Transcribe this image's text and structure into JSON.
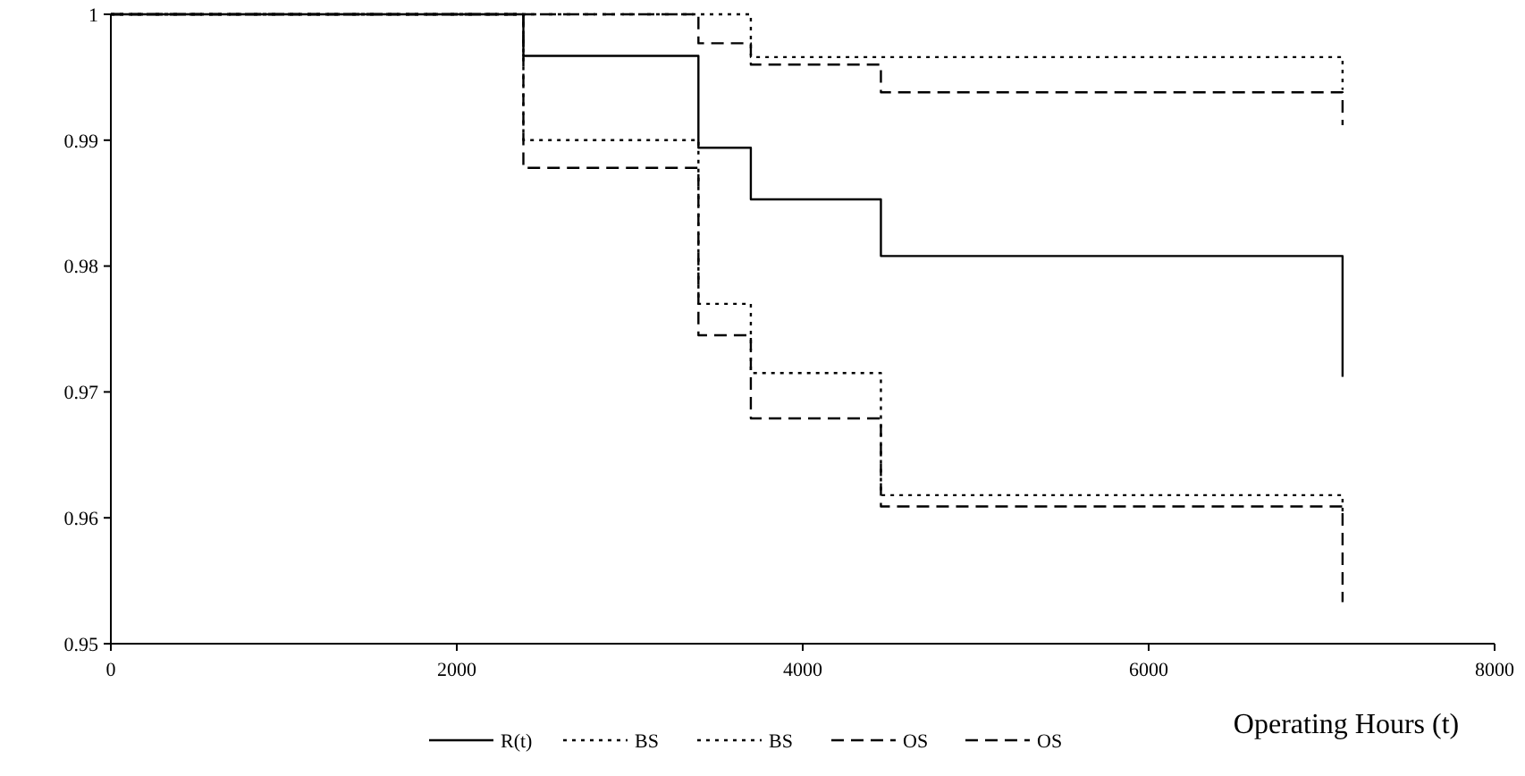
{
  "chart_data": {
    "type": "step",
    "xlabel": "Operating Hours (t)",
    "xlim": [
      0,
      8000
    ],
    "xticks": [
      0,
      2000,
      4000,
      6000,
      8000
    ],
    "ylim": [
      0.95,
      1
    ],
    "yticks": [
      0.95,
      0.96,
      0.97,
      0.98,
      0.99,
      1
    ],
    "grid": false,
    "legend": "bottom",
    "series": [
      {
        "name": "R(t)",
        "color": "#000000",
        "line_style": "solid",
        "x": [
          0,
          2385,
          3397,
          3700,
          4452,
          7121,
          7121
        ],
        "values": [
          1,
          0.9967,
          0.9894,
          0.9853,
          0.9808,
          0.9808,
          0.9712
        ]
      },
      {
        "name": "BS",
        "color": "#000000",
        "line_style": "dotted",
        "x": [
          0,
          2385,
          3700,
          7121,
          7121
        ],
        "values": [
          1,
          1,
          0.9966,
          0.9966,
          0.994
        ]
      },
      {
        "name": "BS",
        "color": "#000000",
        "line_style": "dotted",
        "x": [
          0,
          2385,
          3397,
          3700,
          4452,
          7121,
          7121
        ],
        "values": [
          1,
          0.99,
          0.977,
          0.9715,
          0.9618,
          0.9618,
          0.9605
        ]
      },
      {
        "name": "OS",
        "color": "#000000",
        "line_style": "dashed",
        "x": [
          0,
          3397,
          3700,
          4452,
          7121,
          7121
        ],
        "values": [
          1,
          0.9977,
          0.996,
          0.9938,
          0.9938,
          0.9912
        ]
      },
      {
        "name": "OS",
        "color": "#000000",
        "line_style": "dashed",
        "x": [
          0,
          2385,
          3397,
          3700,
          4452,
          7121,
          7121
        ],
        "values": [
          1,
          0.9878,
          0.9745,
          0.9679,
          0.9609,
          0.9609,
          0.9533
        ]
      }
    ]
  }
}
